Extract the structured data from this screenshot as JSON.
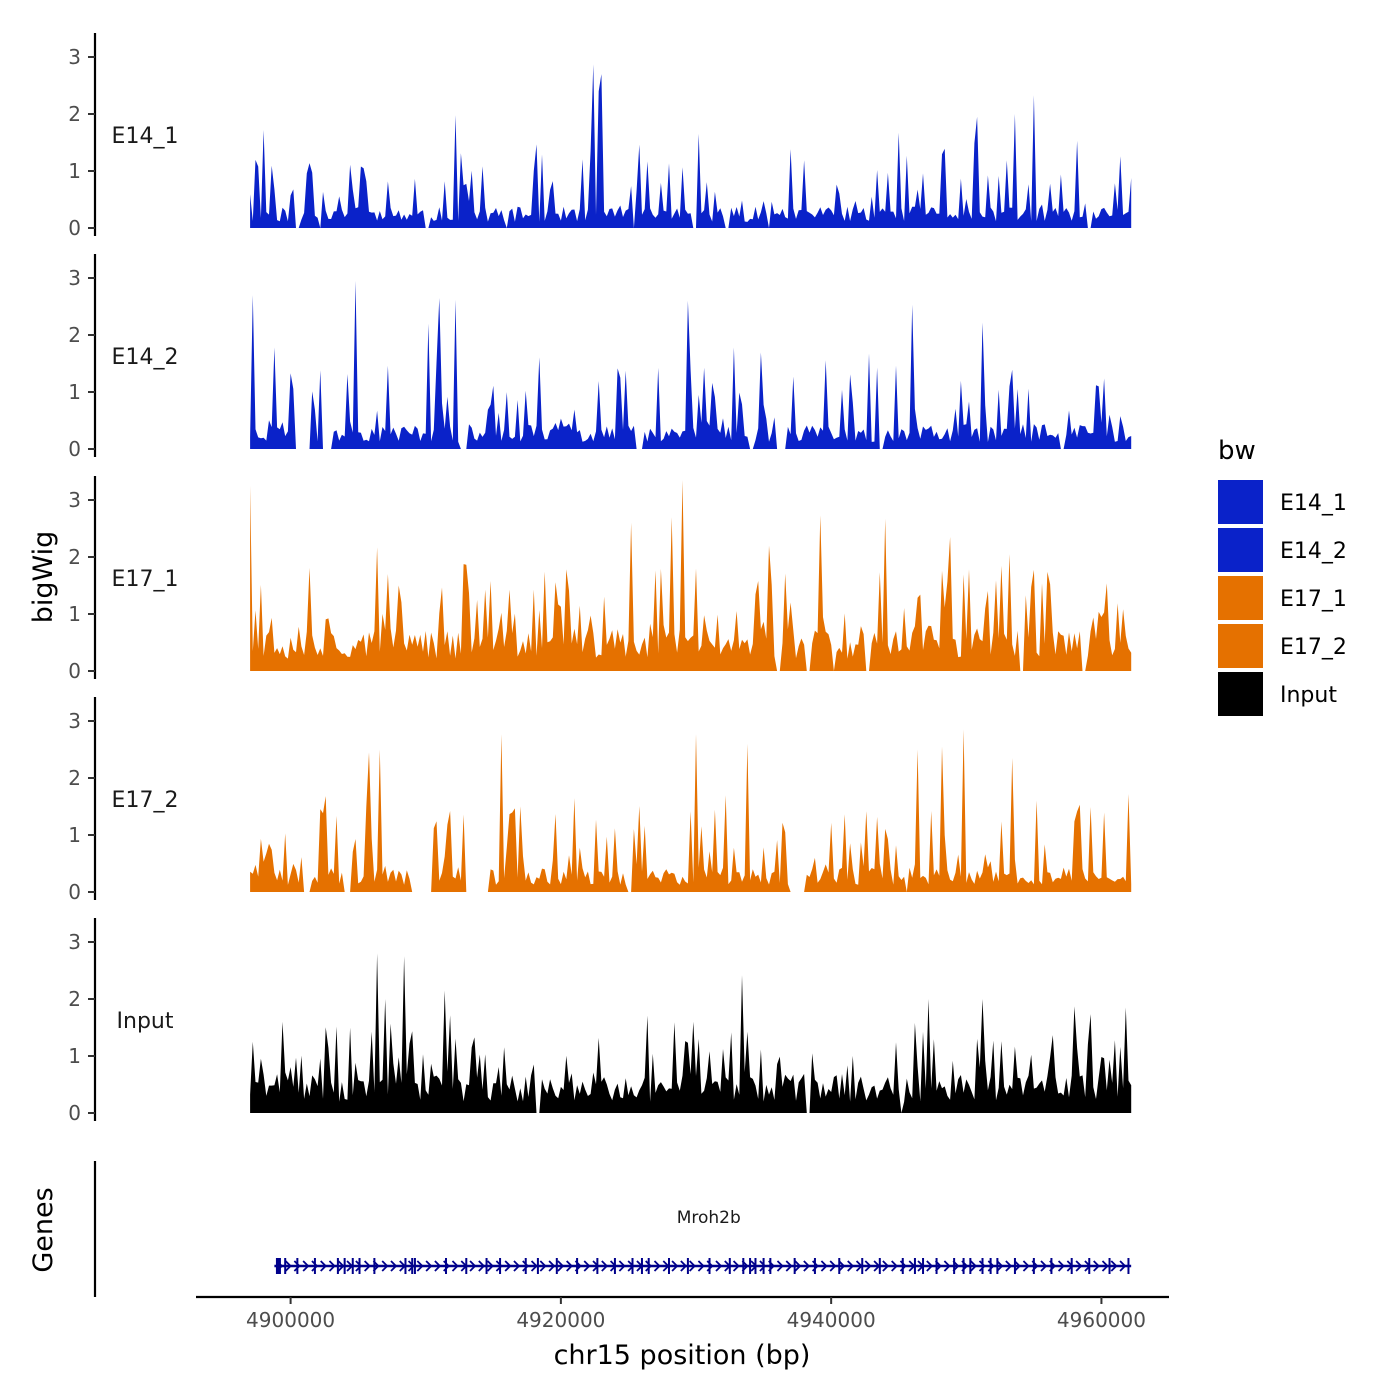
{
  "chart_data": {
    "type": "area",
    "description_free": true,
    "xlabel": "chr15 position (bp)",
    "ylabel": "bigWig",
    "genes_track_label": "Genes",
    "xlim": [
      4893000,
      4965000
    ],
    "x_ticks": [
      4900000,
      4920000,
      4940000,
      4960000
    ],
    "x_tick_labels": [
      "4900000",
      "4920000",
      "4940000",
      "4960000"
    ],
    "ylim": [
      0,
      3.4
    ],
    "y_ticks": [
      0,
      1,
      2,
      3
    ],
    "y_tick_labels": [
      "0",
      "1",
      "2",
      "3"
    ],
    "x_start": 4897000,
    "x_end": 4962200,
    "bin_width": 200,
    "legend": {
      "title": "bw",
      "position": "right",
      "entries": [
        {
          "name": "E14_1",
          "color": "#0a22c9"
        },
        {
          "name": "E14_2",
          "color": "#0a22c9"
        },
        {
          "name": "E17_1",
          "color": "#e57100"
        },
        {
          "name": "E17_2",
          "color": "#e57100"
        },
        {
          "name": "Input",
          "color": "#000000"
        }
      ]
    },
    "series": [
      {
        "name": "E14_1",
        "color": "#0a22c9",
        "seed": 11,
        "base": 0.3,
        "spike_prob": 0.28,
        "spike_max": 1.2,
        "gaps": [
          [
            4900300,
            4900700
          ],
          [
            4902100,
            4902300
          ],
          [
            4910000,
            4910200
          ],
          [
            4916000,
            4916100
          ],
          [
            4925300,
            4925500
          ],
          [
            4929800,
            4930200
          ],
          [
            4932200,
            4932400
          ],
          [
            4935300,
            4935500
          ],
          [
            4958900,
            4959200
          ]
        ],
        "peaks": [
          {
            "x": 4922500,
            "y": 2.87
          },
          {
            "x": 4922800,
            "y": 2.4
          },
          {
            "x": 4923100,
            "y": 2.7
          },
          {
            "x": 4955100,
            "y": 2.33
          },
          {
            "x": 4912200,
            "y": 1.98
          },
          {
            "x": 4950800,
            "y": 1.95
          },
          {
            "x": 4953700,
            "y": 2.0
          },
          {
            "x": 4898100,
            "y": 1.72
          },
          {
            "x": 4930200,
            "y": 1.65
          },
          {
            "x": 4945000,
            "y": 1.67
          }
        ]
      },
      {
        "name": "E14_2",
        "color": "#0a22c9",
        "seed": 23,
        "base": 0.35,
        "spike_prob": 0.3,
        "spike_max": 1.3,
        "gaps": [
          [
            4900400,
            4901500
          ],
          [
            4902300,
            4903000
          ],
          [
            4912500,
            4913000
          ],
          [
            4925500,
            4926000
          ],
          [
            4934000,
            4934300
          ],
          [
            4936000,
            4936600
          ],
          [
            4943500,
            4943800
          ],
          [
            4957000,
            4957300
          ]
        ],
        "peaks": [
          {
            "x": 4897200,
            "y": 2.7
          },
          {
            "x": 4904800,
            "y": 2.95
          },
          {
            "x": 4911000,
            "y": 2.65
          },
          {
            "x": 4912300,
            "y": 2.62
          },
          {
            "x": 4910200,
            "y": 2.2
          },
          {
            "x": 4929500,
            "y": 2.6
          },
          {
            "x": 4946000,
            "y": 2.53
          },
          {
            "x": 4951300,
            "y": 2.22
          },
          {
            "x": 4898900,
            "y": 1.78
          },
          {
            "x": 4932800,
            "y": 1.78
          }
        ]
      },
      {
        "name": "E17_1",
        "color": "#e57100",
        "seed": 37,
        "base": 0.6,
        "spike_prob": 0.3,
        "spike_max": 1.3,
        "gaps": [
          [
            4936000,
            4936300
          ],
          [
            4938200,
            4938400
          ],
          [
            4940200,
            4940300
          ],
          [
            4942600,
            4942900
          ],
          [
            4954000,
            4954200
          ],
          [
            4958600,
            4958800
          ]
        ],
        "peaks": [
          {
            "x": 4897100,
            "y": 3.25
          },
          {
            "x": 4929000,
            "y": 3.35
          },
          {
            "x": 4928200,
            "y": 2.7
          },
          {
            "x": 4925200,
            "y": 2.6
          },
          {
            "x": 4944000,
            "y": 2.67
          },
          {
            "x": 4939200,
            "y": 2.73
          },
          {
            "x": 4906500,
            "y": 2.17
          },
          {
            "x": 4948800,
            "y": 2.35
          },
          {
            "x": 4953200,
            "y": 2.05
          },
          {
            "x": 4935400,
            "y": 2.2
          }
        ]
      },
      {
        "name": "E17_2",
        "color": "#e57100",
        "seed": 53,
        "base": 0.35,
        "spike_prob": 0.3,
        "spike_max": 1.4,
        "gaps": [
          [
            4901000,
            4901400
          ],
          [
            4904000,
            4904500
          ],
          [
            4909000,
            4910500
          ],
          [
            4913000,
            4914600
          ],
          [
            4925000,
            4925200
          ],
          [
            4937000,
            4938000
          ],
          [
            4945500,
            4945700
          ]
        ],
        "peaks": [
          {
            "x": 4915600,
            "y": 2.77
          },
          {
            "x": 4930000,
            "y": 2.77
          },
          {
            "x": 4949800,
            "y": 2.85
          },
          {
            "x": 4933800,
            "y": 2.6
          },
          {
            "x": 4948200,
            "y": 2.55
          },
          {
            "x": 4906700,
            "y": 2.5
          },
          {
            "x": 4905800,
            "y": 2.45
          },
          {
            "x": 4953500,
            "y": 2.35
          },
          {
            "x": 4946400,
            "y": 2.5
          }
        ]
      },
      {
        "name": "Input",
        "color": "#000000",
        "seed": 71,
        "base": 0.55,
        "spike_prob": 0.3,
        "spike_max": 1.2,
        "gaps": [
          [
            4918200,
            4918400
          ],
          [
            4938200,
            4938500
          ],
          [
            4945200,
            4945300
          ]
        ],
        "peaks": [
          {
            "x": 4906500,
            "y": 2.8
          },
          {
            "x": 4908500,
            "y": 2.75
          },
          {
            "x": 4933400,
            "y": 2.42
          },
          {
            "x": 4911500,
            "y": 2.15
          },
          {
            "x": 4907000,
            "y": 2.0
          },
          {
            "x": 4947300,
            "y": 2.0
          },
          {
            "x": 4951200,
            "y": 2.0
          },
          {
            "x": 4961900,
            "y": 1.85
          }
        ]
      }
    ],
    "genes": [
      {
        "name": "Mroh2b",
        "start": 4898800,
        "end": 4962200,
        "strand": "+",
        "color": "#00008b",
        "exons": [
          4899100,
          4899600,
          4900500,
          4901800,
          4903500,
          4904000,
          4904600,
          4905100,
          4906200,
          4908500,
          4909000,
          4909200,
          4911500,
          4913000,
          4914500,
          4915500,
          4917400,
          4918300,
          4919700,
          4921200,
          4922700,
          4924000,
          4925300,
          4926000,
          4926500,
          4928000,
          4929400,
          4931000,
          4932500,
          4933500,
          4934000,
          4934400,
          4935000,
          4935500,
          4937300,
          4938800,
          4940600,
          4942300,
          4943600,
          4945300,
          4946200,
          4946800,
          4947800,
          4949100,
          4949800,
          4950300,
          4951200,
          4951800,
          4952300,
          4953600,
          4955000,
          4956300,
          4957800,
          4959100,
          4960600,
          4962000
        ]
      }
    ]
  }
}
